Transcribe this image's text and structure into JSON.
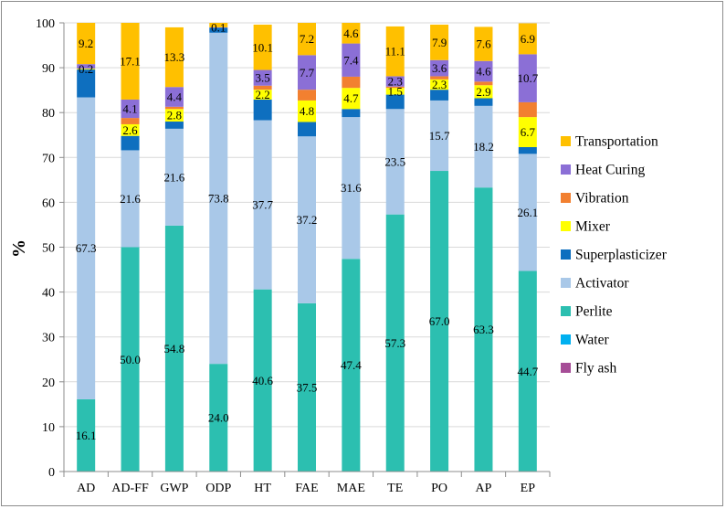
{
  "chart_data": {
    "type": "bar",
    "stacked": true,
    "ylabel": "%",
    "ylim": [
      0,
      100
    ],
    "yticks": [
      "0",
      "10",
      "20",
      "30",
      "40",
      "50",
      "60",
      "70",
      "80",
      "90",
      "100"
    ],
    "categories": [
      "AD",
      "AD-FF",
      "GWP",
      "ODP",
      "HT",
      "FAE",
      "MAE",
      "TE",
      "PO",
      "AP",
      "EP"
    ],
    "legend_position": "right",
    "series": [
      {
        "name": "Fly ash",
        "color": "#a64d97",
        "values": [
          0,
          0,
          0,
          0,
          0,
          0,
          0,
          0,
          0,
          0,
          0
        ],
        "labels": [
          "",
          "",
          "",
          "",
          "",
          "",
          "",
          "",
          "",
          "",
          ""
        ]
      },
      {
        "name": "Water",
        "color": "#00b0f0",
        "values": [
          0,
          0,
          0,
          0,
          0,
          0,
          0,
          0,
          0,
          0,
          0
        ],
        "labels": [
          "",
          "",
          "",
          "",
          "",
          "",
          "",
          "",
          "",
          "",
          ""
        ]
      },
      {
        "name": "Perlite",
        "color": "#2cbfb0",
        "values": [
          16.1,
          50.0,
          54.8,
          24.0,
          40.6,
          37.5,
          47.4,
          57.3,
          67.0,
          63.3,
          44.7
        ],
        "labels": [
          "16.1",
          "50.0",
          "54.8",
          "24.0",
          "40.6",
          "37.5",
          "47.4",
          "57.3",
          "67.0",
          "63.3",
          "44.7"
        ]
      },
      {
        "name": "Activator",
        "color": "#a9c8e8",
        "values": [
          67.3,
          21.6,
          21.6,
          73.8,
          37.7,
          37.2,
          31.6,
          23.5,
          15.7,
          18.2,
          26.1
        ],
        "labels": [
          "67.3",
          "21.6",
          "21.6",
          "73.8",
          "37.7",
          "37.2",
          "31.6",
          "23.5",
          "15.7",
          "18.2",
          "26.1"
        ]
      },
      {
        "name": "Superplasticizer",
        "color": "#0e6fbf",
        "values": [
          6.2,
          3.2,
          1.6,
          1.1,
          4.6,
          3.2,
          1.8,
          3.2,
          2.4,
          1.7,
          1.5
        ],
        "labels": [
          "",
          "",
          "",
          "",
          "",
          "",
          "",
          "",
          "",
          "",
          ""
        ]
      },
      {
        "name": "Mixer",
        "color": "#ffff00",
        "values": [
          0.2,
          2.6,
          2.8,
          0,
          2.2,
          4.8,
          4.7,
          1.5,
          2.3,
          2.9,
          6.7
        ],
        "labels": [
          "0.2",
          "2.6",
          "2.8",
          "",
          "2.2",
          "4.8",
          "4.7",
          "1.5",
          "2.3",
          "2.9",
          "6.7"
        ]
      },
      {
        "name": "Vibration",
        "color": "#f28030",
        "values": [
          0,
          1.4,
          0.5,
          0,
          0.9,
          2.4,
          2.5,
          0.3,
          0.7,
          0.8,
          3.3
        ],
        "labels": [
          "",
          "",
          "",
          "",
          "",
          "",
          "",
          "",
          "",
          "",
          ""
        ]
      },
      {
        "name": "Heat Curing",
        "color": "#8b6fd6",
        "values": [
          1.0,
          4.1,
          4.4,
          0.1,
          3.5,
          7.7,
          7.4,
          2.3,
          3.6,
          4.6,
          10.7
        ],
        "labels": [
          "",
          "4.1",
          "4.4",
          "0.1",
          "3.5",
          "7.7",
          "7.4",
          "2.3",
          "3.6",
          "4.6",
          "10.7"
        ]
      },
      {
        "name": "Transportation",
        "color": "#ffc000",
        "values": [
          9.2,
          17.1,
          13.3,
          1.0,
          10.1,
          7.2,
          4.6,
          11.1,
          7.9,
          7.6,
          6.9
        ],
        "labels": [
          "9.2",
          "17.1",
          "13.3",
          "",
          "10.1",
          "7.2",
          "4.6",
          "11.1",
          "7.9",
          "7.6",
          "6.9"
        ]
      }
    ]
  }
}
